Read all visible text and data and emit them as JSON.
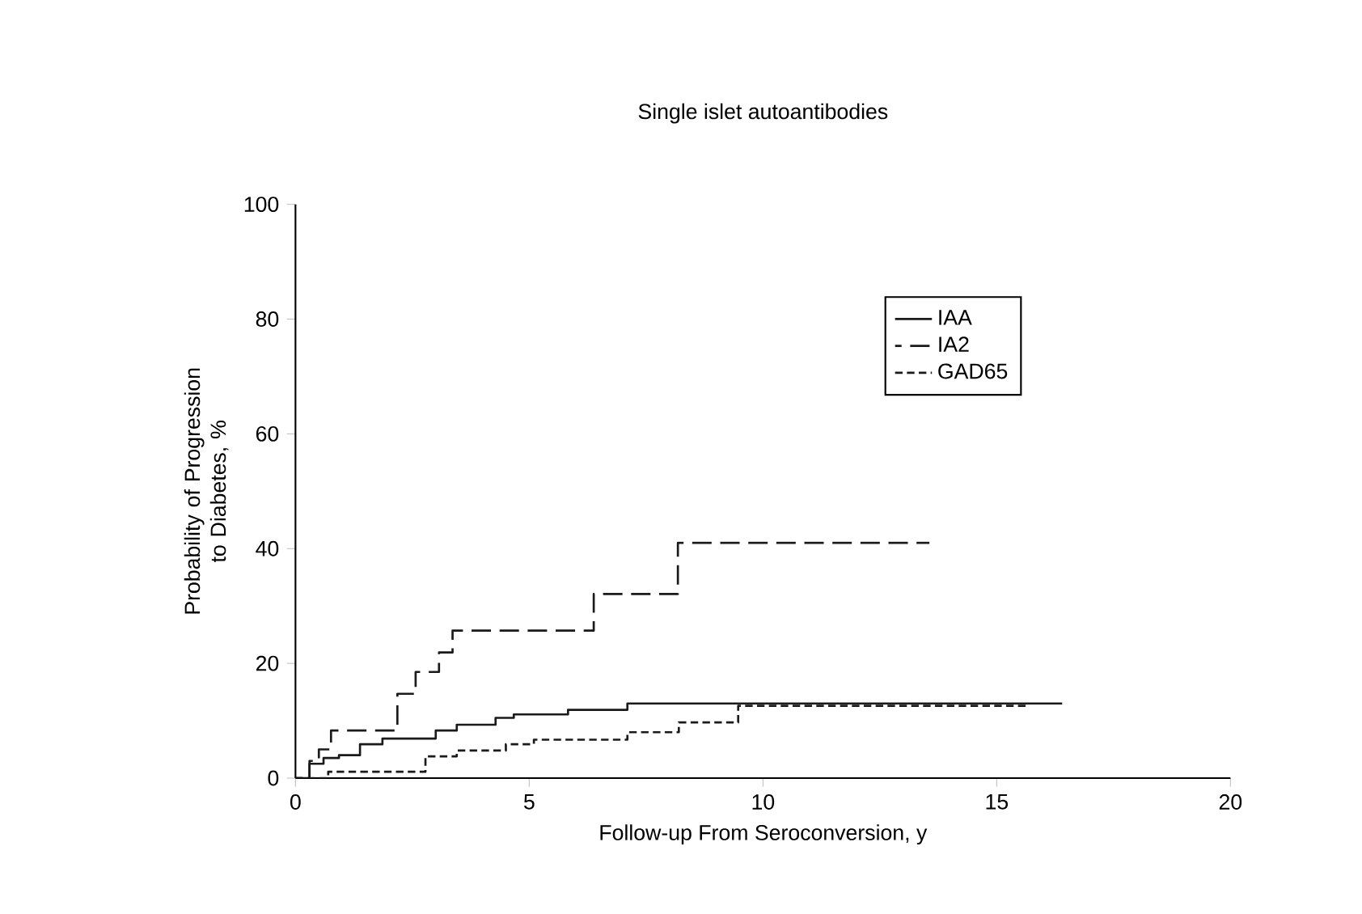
{
  "chart_data": {
    "type": "step",
    "title": "Single islet autoantibodies",
    "xlabel": "Follow-up From Seroconversion, y",
    "ylabel": "Probability of Progression to Diabetes, %",
    "xlim": [
      0,
      20
    ],
    "ylim": [
      0,
      100
    ],
    "xticks": [
      0,
      5,
      10,
      15,
      20
    ],
    "yticks": [
      0,
      20,
      40,
      60,
      80,
      100
    ],
    "legend": "top right",
    "grid": false,
    "series": [
      {
        "name": "IAA",
        "color": "#1a1a1a",
        "line_style": "solid",
        "x": [
          0,
          0.3,
          0.6,
          0.93,
          1.38,
          1.86,
          2.66,
          3.0,
          3.45,
          4.28,
          4.67,
          5.83,
          7.1,
          16.4
        ],
        "values": [
          0,
          2.5,
          3.5,
          4,
          5.9,
          6.9,
          6.9,
          8.3,
          9.3,
          10.5,
          11.1,
          11.9,
          13.0,
          13.0
        ]
      },
      {
        "name": "IA2",
        "color": "#1a1a1a",
        "line_style": "dashed",
        "x": [
          0,
          0.3,
          0.5,
          0.76,
          2.18,
          2.57,
          3.07,
          3.36,
          6.38,
          8.18,
          13.56
        ],
        "values": [
          0,
          3,
          5,
          8.3,
          14.7,
          18.5,
          21.9,
          25.7,
          32.1,
          41,
          41
        ]
      },
      {
        "name": "GAD65",
        "color": "#1a1a1a",
        "line_style": "dashed",
        "x": [
          0,
          0.7,
          2.78,
          3.45,
          4.5,
          5.1,
          7.1,
          8.2,
          9.47,
          15.7
        ],
        "values": [
          0,
          1.1,
          3.8,
          4.8,
          5.9,
          6.7,
          8.0,
          9.7,
          12.6,
          12.6
        ]
      }
    ]
  }
}
